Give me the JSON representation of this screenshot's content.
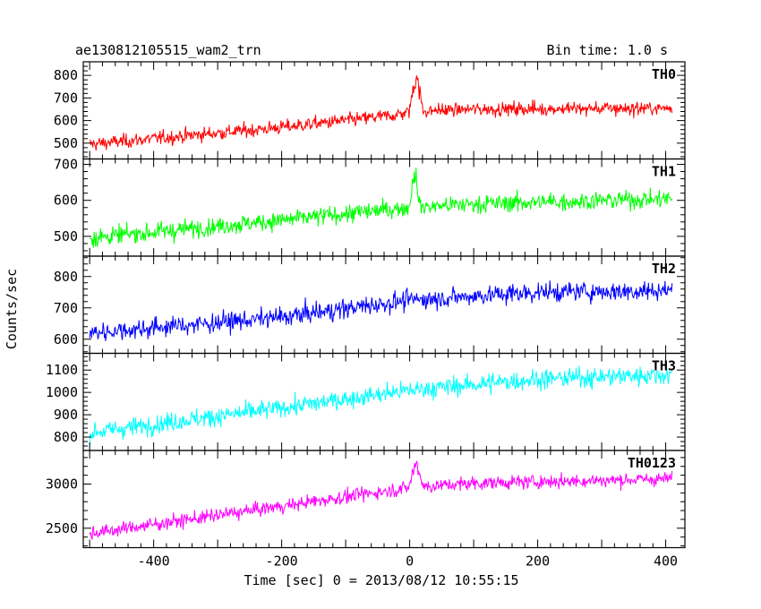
{
  "header": {
    "title": "ae130812105515_wam2_trn",
    "bin_time": "Bin time: 1.0 s"
  },
  "chart_data": {
    "type": "line",
    "xlabel": "Time [sec] 0 = 2013/08/12 10:55:15",
    "ylabel": "Counts/sec",
    "xlim": [
      -510,
      430
    ],
    "x_ticks": [
      "-400",
      "-200",
      "0",
      "200",
      "400"
    ],
    "x_tick_values": [
      -400,
      -200,
      0,
      200,
      400
    ],
    "grid": false,
    "panels": [
      {
        "name": "TH0",
        "color": "#ff0000",
        "ylim": [
          430,
          860
        ],
        "y_ticks": [
          "500",
          "600",
          "700",
          "800"
        ],
        "y_tick_values": [
          500,
          600,
          700,
          800
        ],
        "trend": [
          [
            -500,
            495
          ],
          [
            -200,
            570
          ],
          [
            -20,
            625
          ],
          [
            0,
            640
          ],
          [
            100,
            650
          ],
          [
            410,
            655
          ]
        ],
        "noise": 22,
        "spike": {
          "x": [
            0,
            20
          ],
          "peak": 850
        }
      },
      {
        "name": "TH1",
        "color": "#00ff00",
        "ylim": [
          445,
          715
        ],
        "y_ticks": [
          "500",
          "600",
          "700"
        ],
        "y_tick_values": [
          500,
          600,
          700
        ],
        "trend": [
          [
            -500,
            495
          ],
          [
            -200,
            545
          ],
          [
            0,
            580
          ],
          [
            100,
            590
          ],
          [
            410,
            605
          ]
        ],
        "noise": 18,
        "spike": {
          "x": [
            0,
            15
          ],
          "peak": 710
        }
      },
      {
        "name": "TH2",
        "color": "#0000ff",
        "ylim": [
          555,
          865
        ],
        "y_ticks": [
          "600",
          "700",
          "800"
        ],
        "y_tick_values": [
          600,
          700,
          800
        ],
        "trend": [
          [
            -500,
            620
          ],
          [
            -200,
            670
          ],
          [
            0,
            725
          ],
          [
            200,
            750
          ],
          [
            410,
            755
          ]
        ],
        "noise": 22,
        "spike": null
      },
      {
        "name": "TH3",
        "color": "#00ffff",
        "ylim": [
          740,
          1175
        ],
        "y_ticks": [
          "800",
          "900",
          "1000",
          "1100"
        ],
        "y_tick_values": [
          800,
          900,
          1000,
          1100
        ],
        "trend": [
          [
            -500,
            820
          ],
          [
            -200,
            930
          ],
          [
            0,
            1010
          ],
          [
            200,
            1060
          ],
          [
            410,
            1080
          ]
        ],
        "noise": 30,
        "spike": null
      },
      {
        "name": "TH0123",
        "color": "#ff00ff",
        "ylim": [
          2280,
          3380
        ],
        "y_ticks": [
          "2500",
          "3000"
        ],
        "y_tick_values": [
          2500,
          3000
        ],
        "trend": [
          [
            -500,
            2440
          ],
          [
            -200,
            2750
          ],
          [
            0,
            2960
          ],
          [
            100,
            3010
          ],
          [
            410,
            3060
          ]
        ],
        "noise": 55,
        "spike": {
          "x": [
            0,
            20
          ],
          "peak": 3350
        }
      }
    ]
  }
}
